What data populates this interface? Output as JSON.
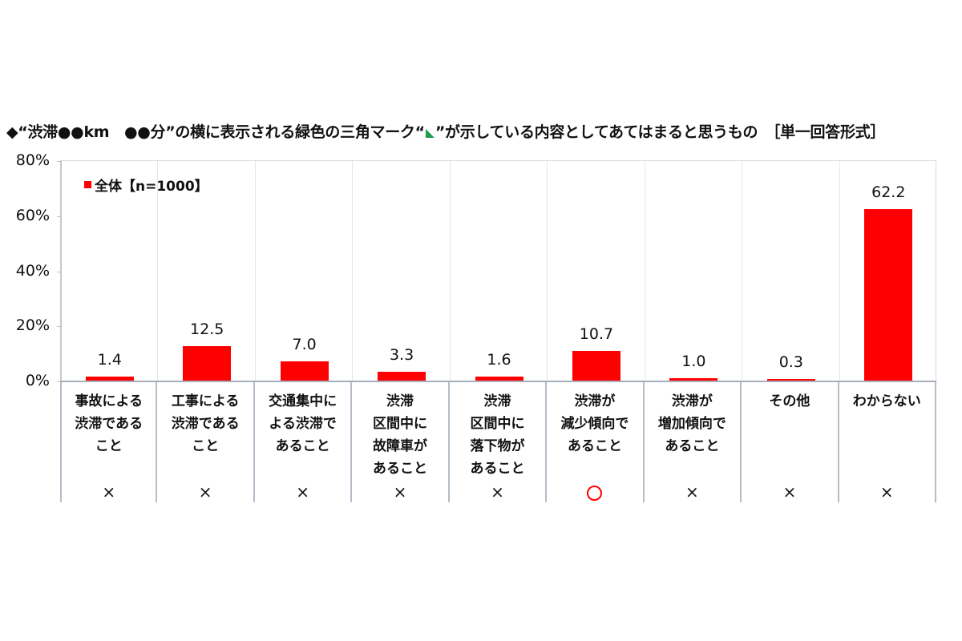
{
  "chart_data": {
    "type": "bar",
    "title": "◆“渋滞●●km　●●分”の横に表示される緑色の三角マーク“◣”が示している内容としてあてはまると思うもの　［単一回答形式］",
    "title_parts": {
      "before": "◆“渋滞●●km　●●分”の横に表示される緑色の三角マーク“",
      "after": "”が示している内容としてあてはまると思うもの　［単一回答形式］"
    },
    "xlabel": "",
    "ylabel": "",
    "ylim": [
      0,
      80
    ],
    "yticks": [
      "0%",
      "20%",
      "40%",
      "60%",
      "80%"
    ],
    "grid": "vertical category separators",
    "legend_position": "top-left inside plot",
    "series": [
      {
        "name": "全体【n=1000】",
        "color": "#ff0000",
        "values": [
          1.4,
          12.5,
          7.0,
          3.3,
          1.6,
          10.7,
          1.0,
          0.3,
          62.2
        ]
      }
    ],
    "categories": [
      "事故による渋滞であること",
      "工事による渋滞であること",
      "交通集中による渋滞であること",
      "渋滞区間中に故障車があること",
      "渋滞区間中に落下物があること",
      "渋滞が減少傾向であること",
      "渋滞が増加傾向であること",
      "その他",
      "わからない"
    ],
    "category_labels_display": [
      "事故による\n渋滞である\nこと",
      "工事による\n渋滞である\nこと",
      "交通集中に\nよる渋滞で\nあること",
      "渋滞\n区間中に\n故障車が\nあること",
      "渋滞\n区間中に\n落下物が\nあること",
      "渋滞が\n減少傾向で\nあること",
      "渋滞が\n増加傾向で\nあること",
      "その他",
      "わからない"
    ],
    "value_labels": [
      "1.4",
      "12.5",
      "7.0",
      "3.3",
      "1.6",
      "10.7",
      "1.0",
      "0.3",
      "62.2"
    ],
    "correctness_marks": [
      "×",
      "×",
      "×",
      "×",
      "×",
      "○",
      "×",
      "×",
      "×"
    ],
    "legend": [
      "全体【n=1000】"
    ]
  },
  "colors": {
    "bar": "#ff0000",
    "triangle_mark": "#1a9e4a",
    "correct_mark": "#ff0000"
  }
}
